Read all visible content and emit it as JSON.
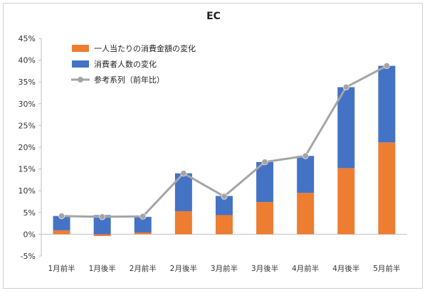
{
  "chart_data": {
    "type": "bar",
    "stacked": true,
    "title": "EC",
    "xlabel": "",
    "ylabel": "",
    "ylim": [
      -5,
      45
    ],
    "yticks": [
      -5,
      0,
      5,
      10,
      15,
      20,
      25,
      30,
      35,
      40,
      45
    ],
    "ytick_labels": [
      "-5%",
      "0%",
      "5%",
      "10%",
      "15%",
      "20%",
      "25%",
      "30%",
      "35%",
      "40%",
      "45%"
    ],
    "grid": false,
    "legend_position": "top-left",
    "categories": [
      "1月前半",
      "1月後半",
      "2月前半",
      "2月後半",
      "3月前半",
      "3月後半",
      "4月前半",
      "4月後半",
      "5月前半"
    ],
    "series": [
      {
        "name": "一人当たりの消費金額の変化",
        "type": "bar",
        "color": "#ED7D31",
        "values": [
          0.9,
          -0.4,
          0.4,
          5.3,
          4.4,
          7.4,
          9.5,
          15.2,
          21.1
        ]
      },
      {
        "name": "消費者人数の変化",
        "type": "bar",
        "color": "#4472C4",
        "values": [
          3.3,
          4.4,
          3.6,
          8.7,
          4.4,
          9.2,
          8.5,
          18.6,
          17.6
        ]
      },
      {
        "name": "参考系列（前年比）",
        "type": "line",
        "color": "#A5A5A5",
        "values": [
          4.2,
          4.0,
          4.1,
          14.0,
          8.7,
          16.6,
          18.0,
          33.8,
          38.7
        ]
      }
    ]
  }
}
